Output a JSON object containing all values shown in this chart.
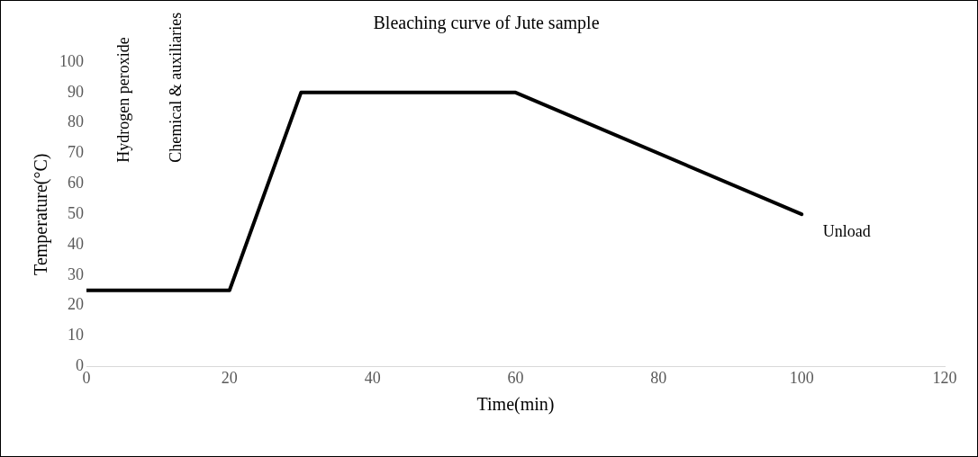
{
  "chart_data": {
    "type": "line",
    "title": "Bleaching curve of Jute sample",
    "xlabel": "Time(min)",
    "ylabel": "Temperature(°C)",
    "x": [
      0,
      20,
      30,
      60,
      100
    ],
    "series": [
      {
        "color": "#000000",
        "values": [
          25,
          25,
          90,
          90,
          50
        ]
      }
    ],
    "xlim": [
      0,
      120
    ],
    "xticks": [
      0,
      20,
      40,
      60,
      80,
      100,
      120
    ],
    "ylim": [
      0,
      100
    ],
    "yticks": [
      0,
      10,
      20,
      30,
      40,
      50,
      60,
      70,
      80,
      90,
      100
    ],
    "grid": false,
    "legend": false,
    "marker": "none",
    "line_style": "solid",
    "annotations": [
      "Hydrogen peroxide",
      "Chemical & auxiliaries",
      "Unload"
    ]
  }
}
